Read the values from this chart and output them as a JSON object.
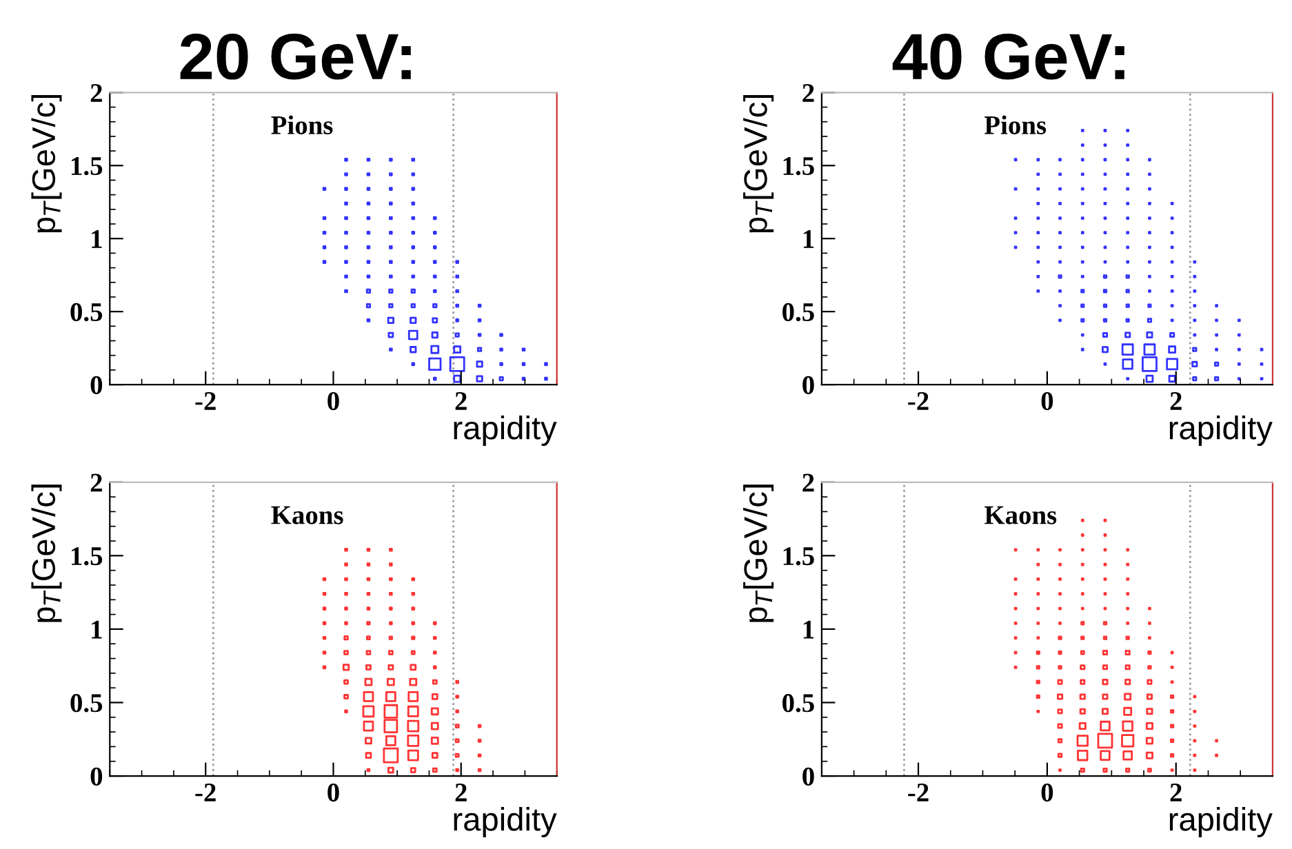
{
  "chart_data": [
    {
      "type": "bubble",
      "title": "20 GeV:",
      "xlabel": "rapidity",
      "ylabel": "p$_{T}$[GeV/c]",
      "annotations": [
        "Pions"
      ],
      "xlim": [
        -3.5,
        3.5
      ],
      "xticks": [
        -2,
        0,
        2
      ],
      "ylim": [
        0,
        2
      ],
      "yticks": [
        0,
        0.5,
        1,
        1.5,
        2
      ],
      "marker": "square",
      "grid": false,
      "ref_lines": [
        {
          "axis": "x",
          "value": -1.88,
          "color": "#999999",
          "line_style": "dotted"
        },
        {
          "axis": "x",
          "value": 1.88,
          "color": "#999999",
          "line_style": "dotted"
        }
      ],
      "series": [
        {
          "color": "#3333ff",
          "x": [
            0.2,
            0.55,
            0.9,
            1.25,
            0.2,
            0.55,
            0.9,
            1.25,
            -0.14,
            0.2,
            0.55,
            0.9,
            1.25,
            0.2,
            0.55,
            0.9,
            1.25,
            -0.14,
            0.2,
            0.55,
            0.9,
            1.25,
            1.59,
            -0.14,
            0.2,
            0.55,
            0.9,
            1.25,
            1.59,
            -0.14,
            0.2,
            0.55,
            0.9,
            1.25,
            1.59,
            -0.14,
            0.2,
            0.55,
            0.9,
            1.25,
            1.59,
            1.94,
            0.2,
            0.55,
            0.9,
            1.25,
            1.59,
            1.94,
            0.2,
            0.55,
            0.9,
            1.25,
            1.59,
            1.94,
            0.55,
            0.9,
            1.25,
            1.59,
            1.94,
            2.29,
            0.55,
            0.9,
            1.25,
            1.59,
            1.94,
            2.29,
            0.9,
            1.25,
            1.59,
            1.94,
            2.29,
            2.63,
            0.9,
            1.25,
            1.59,
            1.94,
            2.29,
            2.63,
            2.98,
            1.25,
            1.59,
            1.94,
            2.29,
            2.63,
            2.98,
            3.33,
            1.59,
            1.94,
            2.29,
            2.63,
            2.98,
            3.33
          ],
          "values": [
            1.54,
            1.54,
            1.54,
            1.54,
            1.44,
            1.44,
            1.44,
            1.44,
            1.34,
            1.34,
            1.34,
            1.34,
            1.34,
            1.24,
            1.24,
            1.24,
            1.24,
            1.14,
            1.14,
            1.14,
            1.14,
            1.14,
            1.14,
            1.04,
            1.04,
            1.04,
            1.04,
            1.04,
            1.04,
            0.94,
            0.94,
            0.94,
            0.94,
            0.94,
            0.94,
            0.84,
            0.84,
            0.84,
            0.84,
            0.84,
            0.84,
            0.84,
            0.74,
            0.74,
            0.74,
            0.74,
            0.74,
            0.74,
            0.64,
            0.64,
            0.64,
            0.64,
            0.64,
            0.64,
            0.54,
            0.54,
            0.54,
            0.54,
            0.54,
            0.54,
            0.44,
            0.44,
            0.44,
            0.44,
            0.44,
            0.44,
            0.34,
            0.34,
            0.34,
            0.34,
            0.34,
            0.34,
            0.24,
            0.24,
            0.24,
            0.24,
            0.24,
            0.24,
            0.24,
            0.14,
            0.14,
            0.14,
            0.14,
            0.14,
            0.14,
            0.14,
            0.04,
            0.04,
            0.04,
            0.04,
            0.04,
            0.04
          ],
          "sizes": [
            0.02,
            0.02,
            0.02,
            0.02,
            0.02,
            0.02,
            0.02,
            0.02,
            0.02,
            0.02,
            0.02,
            0.02,
            0.02,
            0.02,
            0.02,
            0.02,
            0.02,
            0.02,
            0.02,
            0.02,
            0.02,
            0.02,
            0.02,
            0.02,
            0.02,
            0.02,
            0.02,
            0.02,
            0.02,
            0.02,
            0.02,
            0.02,
            0.02,
            0.02,
            0.02,
            0.02,
            0.02,
            0.02,
            0.02,
            0.02,
            0.02,
            0.02,
            0.02,
            0.02,
            0.02,
            0.02,
            0.02,
            0.02,
            0.02,
            0.05,
            0.05,
            0.05,
            0.02,
            0.02,
            0.05,
            0.05,
            0.05,
            0.05,
            0.02,
            0.02,
            0.02,
            0.14,
            0.14,
            0.09,
            0.02,
            0.02,
            0.09,
            0.36,
            0.14,
            0.05,
            0.02,
            0.02,
            0.02,
            0.14,
            0.25,
            0.2,
            0.05,
            0.02,
            0.02,
            0.02,
            0.68,
            1,
            0.14,
            0.02,
            0.02,
            0.02,
            0.02,
            0.2,
            0.14,
            0.05,
            0.02,
            0.02
          ]
        }
      ]
    },
    {
      "type": "bubble",
      "title": "40 GeV:",
      "xlabel": "rapidity",
      "ylabel": "p$_{T}$[GeV/c]",
      "annotations": [
        "Pions"
      ],
      "xlim": [
        -3.5,
        3.5
      ],
      "xticks": [
        -2,
        0,
        2
      ],
      "ylim": [
        0,
        2
      ],
      "yticks": [
        0,
        0.5,
        1,
        1.5,
        2
      ],
      "marker": "square",
      "grid": false,
      "ref_lines": [
        {
          "axis": "x",
          "value": -2.22,
          "color": "#999999",
          "line_style": "dotted"
        },
        {
          "axis": "x",
          "value": 2.22,
          "color": "#999999",
          "line_style": "dotted"
        }
      ],
      "series": [
        {
          "color": "#3333ff",
          "x": [
            0.55,
            0.9,
            1.25,
            0.55,
            0.9,
            1.25,
            -0.49,
            -0.14,
            0.2,
            0.55,
            0.9,
            1.25,
            1.59,
            -0.14,
            0.2,
            0.55,
            0.9,
            1.25,
            1.59,
            -0.49,
            -0.14,
            0.2,
            0.55,
            0.9,
            1.25,
            1.59,
            -0.14,
            0.2,
            0.55,
            0.9,
            1.25,
            1.59,
            1.94,
            -0.49,
            -0.14,
            0.2,
            0.55,
            0.9,
            1.25,
            1.59,
            1.94,
            -0.49,
            -0.14,
            0.2,
            0.55,
            0.9,
            1.25,
            1.59,
            1.94,
            -0.49,
            -0.14,
            0.2,
            0.55,
            0.9,
            1.25,
            1.59,
            1.94,
            -0.14,
            0.2,
            0.55,
            0.9,
            1.25,
            1.59,
            1.94,
            2.29,
            -0.14,
            0.2,
            0.55,
            0.9,
            1.25,
            1.59,
            1.94,
            2.29,
            -0.14,
            0.2,
            0.55,
            0.9,
            1.25,
            1.59,
            1.94,
            2.29,
            0.2,
            0.55,
            0.9,
            1.25,
            1.59,
            1.94,
            2.29,
            2.63,
            0.2,
            0.55,
            0.9,
            1.25,
            1.59,
            1.94,
            2.29,
            2.63,
            2.98,
            0.55,
            0.9,
            1.25,
            1.59,
            1.94,
            2.29,
            2.63,
            2.98,
            0.55,
            0.9,
            1.25,
            1.59,
            1.94,
            2.29,
            2.63,
            2.98,
            3.33,
            0.9,
            1.25,
            1.59,
            1.94,
            2.29,
            2.63,
            2.98,
            3.33,
            1.25,
            1.59,
            1.94,
            2.29,
            2.63,
            2.98,
            3.33
          ],
          "values": [
            1.74,
            1.74,
            1.74,
            1.64,
            1.64,
            1.64,
            1.54,
            1.54,
            1.54,
            1.54,
            1.54,
            1.54,
            1.54,
            1.44,
            1.44,
            1.44,
            1.44,
            1.44,
            1.44,
            1.34,
            1.34,
            1.34,
            1.34,
            1.34,
            1.34,
            1.34,
            1.24,
            1.24,
            1.24,
            1.24,
            1.24,
            1.24,
            1.24,
            1.14,
            1.14,
            1.14,
            1.14,
            1.14,
            1.14,
            1.14,
            1.14,
            1.04,
            1.04,
            1.04,
            1.04,
            1.04,
            1.04,
            1.04,
            1.04,
            0.94,
            0.94,
            0.94,
            0.94,
            0.94,
            0.94,
            0.94,
            0.94,
            0.84,
            0.84,
            0.84,
            0.84,
            0.84,
            0.84,
            0.84,
            0.84,
            0.74,
            0.74,
            0.74,
            0.74,
            0.74,
            0.74,
            0.74,
            0.74,
            0.64,
            0.64,
            0.64,
            0.64,
            0.64,
            0.64,
            0.64,
            0.64,
            0.54,
            0.54,
            0.54,
            0.54,
            0.54,
            0.54,
            0.54,
            0.54,
            0.44,
            0.44,
            0.44,
            0.44,
            0.44,
            0.44,
            0.44,
            0.44,
            0.44,
            0.34,
            0.34,
            0.34,
            0.34,
            0.34,
            0.34,
            0.34,
            0.34,
            0.24,
            0.24,
            0.24,
            0.24,
            0.24,
            0.24,
            0.24,
            0.24,
            0.24,
            0.14,
            0.14,
            0.14,
            0.14,
            0.14,
            0.14,
            0.14,
            0.14,
            0.04,
            0.04,
            0.04,
            0.04,
            0.04,
            0.04,
            0.04
          ],
          "sizes": [
            0.01,
            0.01,
            0.01,
            0.01,
            0.01,
            0.01,
            0.01,
            0.01,
            0.01,
            0.01,
            0.01,
            0.01,
            0.01,
            0.01,
            0.01,
            0.01,
            0.01,
            0.01,
            0.01,
            0.01,
            0.01,
            0.01,
            0.01,
            0.01,
            0.01,
            0.01,
            0.01,
            0.01,
            0.01,
            0.01,
            0.01,
            0.01,
            0.01,
            0.01,
            0.01,
            0.01,
            0.01,
            0.01,
            0.01,
            0.01,
            0.01,
            0.01,
            0.01,
            0.01,
            0.01,
            0.01,
            0.01,
            0.01,
            0.01,
            0.01,
            0.01,
            0.01,
            0.01,
            0.01,
            0.01,
            0.01,
            0.01,
            0.01,
            0.01,
            0.01,
            0.01,
            0.01,
            0.01,
            0.01,
            0.01,
            0.01,
            0.03,
            0.01,
            0.03,
            0.03,
            0.01,
            0.01,
            0.01,
            0.01,
            0.01,
            0.03,
            0.03,
            0.03,
            0.01,
            0.01,
            0.01,
            0.01,
            0.03,
            0.03,
            0.03,
            0.03,
            0.01,
            0.01,
            0.01,
            0.01,
            0.03,
            0.03,
            0.03,
            0.05,
            0.01,
            0.01,
            0.01,
            0.01,
            0.01,
            0.07,
            0.1,
            0.13,
            0.07,
            0.01,
            0.01,
            0.01,
            0.01,
            0.13,
            0.56,
            0.56,
            0.2,
            0.05,
            0.01,
            0.01,
            0.01,
            0.01,
            0.46,
            1,
            0.56,
            0.1,
            0.05,
            0.01,
            0.01,
            0.01,
            0.2,
            0.17,
            0.05,
            0.05,
            0.01,
            0.01
          ]
        }
      ]
    },
    {
      "type": "bubble",
      "xlabel": "rapidity",
      "ylabel": "p$_{T}$[GeV/c]",
      "annotations": [
        "Kaons"
      ],
      "xlim": [
        -3.5,
        3.5
      ],
      "xticks": [
        -2,
        0,
        2
      ],
      "ylim": [
        0,
        2
      ],
      "yticks": [
        0,
        0.5,
        1,
        1.5,
        2
      ],
      "marker": "square",
      "grid": false,
      "ref_lines": [
        {
          "axis": "x",
          "value": -1.88,
          "color": "#999999",
          "line_style": "dotted"
        },
        {
          "axis": "x",
          "value": 1.88,
          "color": "#999999",
          "line_style": "dotted"
        }
      ],
      "series": [
        {
          "color": "#ff3333",
          "x": [
            0.2,
            0.55,
            0.9,
            0.2,
            0.55,
            0.9,
            -0.14,
            0.2,
            0.55,
            0.9,
            1.25,
            -0.14,
            0.2,
            0.55,
            0.9,
            1.25,
            -0.14,
            0.2,
            0.55,
            0.9,
            1.25,
            -0.14,
            0.2,
            0.55,
            0.9,
            1.25,
            1.59,
            -0.14,
            0.2,
            0.55,
            0.9,
            1.25,
            1.59,
            -0.14,
            0.2,
            0.55,
            0.9,
            1.25,
            1.59,
            -0.14,
            0.2,
            0.55,
            0.9,
            1.25,
            1.59,
            0.2,
            0.55,
            0.9,
            1.25,
            1.59,
            1.94,
            0.2,
            0.55,
            0.9,
            1.25,
            1.59,
            1.94,
            0.2,
            0.55,
            0.9,
            1.25,
            1.59,
            1.94,
            0.55,
            0.9,
            1.25,
            1.59,
            1.94,
            2.29,
            0.55,
            0.9,
            1.25,
            1.59,
            1.94,
            2.29,
            0.55,
            0.9,
            1.25,
            1.59,
            1.94,
            2.29,
            0.55,
            0.9,
            1.25,
            1.59,
            1.94,
            2.29
          ],
          "values": [
            1.54,
            1.54,
            1.54,
            1.44,
            1.44,
            1.44,
            1.34,
            1.34,
            1.34,
            1.34,
            1.34,
            1.24,
            1.24,
            1.24,
            1.24,
            1.24,
            1.14,
            1.14,
            1.14,
            1.14,
            1.14,
            1.04,
            1.04,
            1.04,
            1.04,
            1.04,
            1.04,
            0.94,
            0.94,
            0.94,
            0.94,
            0.94,
            0.94,
            0.84,
            0.84,
            0.84,
            0.84,
            0.84,
            0.84,
            0.74,
            0.74,
            0.74,
            0.74,
            0.74,
            0.74,
            0.64,
            0.64,
            0.64,
            0.64,
            0.64,
            0.64,
            0.54,
            0.54,
            0.54,
            0.54,
            0.54,
            0.54,
            0.44,
            0.44,
            0.44,
            0.44,
            0.44,
            0.44,
            0.34,
            0.34,
            0.34,
            0.34,
            0.34,
            0.34,
            0.24,
            0.24,
            0.24,
            0.24,
            0.24,
            0.24,
            0.14,
            0.14,
            0.14,
            0.14,
            0.14,
            0.14,
            0.04,
            0.04,
            0.04,
            0.04,
            0.04,
            0.04
          ],
          "sizes": [
            0.02,
            0.02,
            0.02,
            0.02,
            0.02,
            0.02,
            0.02,
            0.02,
            0.02,
            0.02,
            0.02,
            0.02,
            0.02,
            0.02,
            0.02,
            0.02,
            0.02,
            0.02,
            0.02,
            0.02,
            0.02,
            0.02,
            0.02,
            0.03,
            0.02,
            0.02,
            0.02,
            0.02,
            0.05,
            0.04,
            0.03,
            0.03,
            0.02,
            0.02,
            0.06,
            0.06,
            0.06,
            0.04,
            0.02,
            0.02,
            0.14,
            0.09,
            0.09,
            0.12,
            0.02,
            0.06,
            0.2,
            0.2,
            0.2,
            0.06,
            0.02,
            0.06,
            0.42,
            0.42,
            0.42,
            0.12,
            0.02,
            0.02,
            0.56,
            0.81,
            0.49,
            0.2,
            0.02,
            0.42,
            0.81,
            0.56,
            0.2,
            0.04,
            0.02,
            0.16,
            0.42,
            0.56,
            0.2,
            0.04,
            0.02,
            0.12,
            1,
            0.49,
            0.12,
            0.04,
            0.02,
            0.02,
            0.12,
            0.09,
            0.06,
            0.02,
            0.02
          ]
        }
      ]
    },
    {
      "type": "bubble",
      "xlabel": "rapidity",
      "ylabel": "p$_{T}$[GeV/c]",
      "annotations": [
        "Kaons"
      ],
      "xlim": [
        -3.5,
        3.5
      ],
      "xticks": [
        -2,
        0,
        2
      ],
      "ylim": [
        0,
        2
      ],
      "yticks": [
        0,
        0.5,
        1,
        1.5,
        2
      ],
      "marker": "square",
      "grid": false,
      "ref_lines": [
        {
          "axis": "x",
          "value": -2.22,
          "color": "#999999",
          "line_style": "dotted"
        },
        {
          "axis": "x",
          "value": 2.22,
          "color": "#999999",
          "line_style": "dotted"
        }
      ],
      "series": [
        {
          "color": "#ff3333",
          "x": [
            0.55,
            0.9,
            0.55,
            0.9,
            -0.49,
            -0.14,
            0.2,
            0.55,
            0.9,
            1.25,
            -0.14,
            0.2,
            0.55,
            0.9,
            1.25,
            -0.49,
            -0.14,
            0.2,
            0.55,
            0.9,
            1.25,
            -0.49,
            -0.14,
            0.2,
            0.55,
            0.9,
            1.25,
            -0.49,
            -0.14,
            0.2,
            0.55,
            0.9,
            1.25,
            1.59,
            -0.49,
            -0.14,
            0.2,
            0.55,
            0.9,
            1.25,
            1.59,
            -0.49,
            -0.14,
            0.2,
            0.55,
            0.9,
            1.25,
            1.59,
            -0.49,
            -0.14,
            0.2,
            0.55,
            0.9,
            1.25,
            1.59,
            1.94,
            -0.49,
            -0.14,
            0.2,
            0.55,
            0.9,
            1.25,
            1.59,
            1.94,
            -0.14,
            0.2,
            0.55,
            0.9,
            1.25,
            1.59,
            1.94,
            -0.14,
            0.2,
            0.55,
            0.9,
            1.25,
            1.59,
            1.94,
            2.29,
            -0.14,
            0.2,
            0.55,
            0.9,
            1.25,
            1.59,
            1.94,
            2.29,
            0.2,
            0.55,
            0.9,
            1.25,
            1.59,
            1.94,
            2.29,
            0.2,
            0.55,
            0.9,
            1.25,
            1.59,
            1.94,
            2.29,
            2.63,
            0.2,
            0.55,
            0.9,
            1.25,
            1.59,
            1.94,
            2.29,
            2.63,
            0.2,
            0.55,
            0.9,
            1.25,
            1.59,
            1.94,
            2.29
          ],
          "values": [
            1.74,
            1.74,
            1.64,
            1.64,
            1.54,
            1.54,
            1.54,
            1.54,
            1.54,
            1.54,
            1.44,
            1.44,
            1.44,
            1.44,
            1.44,
            1.34,
            1.34,
            1.34,
            1.34,
            1.34,
            1.34,
            1.24,
            1.24,
            1.24,
            1.24,
            1.24,
            1.24,
            1.14,
            1.14,
            1.14,
            1.14,
            1.14,
            1.14,
            1.14,
            1.04,
            1.04,
            1.04,
            1.04,
            1.04,
            1.04,
            1.04,
            0.94,
            0.94,
            0.94,
            0.94,
            0.94,
            0.94,
            0.94,
            0.84,
            0.84,
            0.84,
            0.84,
            0.84,
            0.84,
            0.84,
            0.84,
            0.74,
            0.74,
            0.74,
            0.74,
            0.74,
            0.74,
            0.74,
            0.74,
            0.64,
            0.64,
            0.64,
            0.64,
            0.64,
            0.64,
            0.64,
            0.54,
            0.54,
            0.54,
            0.54,
            0.54,
            0.54,
            0.54,
            0.54,
            0.44,
            0.44,
            0.44,
            0.44,
            0.44,
            0.44,
            0.44,
            0.44,
            0.34,
            0.34,
            0.34,
            0.34,
            0.34,
            0.34,
            0.34,
            0.24,
            0.24,
            0.24,
            0.24,
            0.24,
            0.24,
            0.24,
            0.24,
            0.14,
            0.14,
            0.14,
            0.14,
            0.14,
            0.14,
            0.14,
            0.14,
            0.04,
            0.04,
            0.04,
            0.04,
            0.04,
            0.04,
            0.04
          ],
          "sizes": [
            0.01,
            0.01,
            0.01,
            0.01,
            0.01,
            0.01,
            0.01,
            0.01,
            0.01,
            0.01,
            0.01,
            0.01,
            0.01,
            0.01,
            0.01,
            0.01,
            0.01,
            0.01,
            0.01,
            0.01,
            0.01,
            0.01,
            0.01,
            0.01,
            0.01,
            0.01,
            0.01,
            0.01,
            0.01,
            0.01,
            0.01,
            0.01,
            0.01,
            0.01,
            0.01,
            0.01,
            0.01,
            0.03,
            0.03,
            0.01,
            0.01,
            0.01,
            0.01,
            0.03,
            0.03,
            0.03,
            0.03,
            0.01,
            0.01,
            0.03,
            0.03,
            0.04,
            0.07,
            0.07,
            0.03,
            0.01,
            0.01,
            0.03,
            0.03,
            0.07,
            0.07,
            0.07,
            0.03,
            0.01,
            0.03,
            0.07,
            0.07,
            0.1,
            0.1,
            0.07,
            0.01,
            0.03,
            0.1,
            0.1,
            0.1,
            0.17,
            0.1,
            0.03,
            0.01,
            0.01,
            0.07,
            0.1,
            0.13,
            0.25,
            0.13,
            0.03,
            0.01,
            0.07,
            0.17,
            0.4,
            0.46,
            0.17,
            0.03,
            0.01,
            0.05,
            0.53,
            1,
            0.67,
            0.17,
            0.03,
            0.01,
            0.01,
            0.05,
            0.46,
            0.4,
            0.35,
            0.17,
            0.03,
            0.01,
            0.01,
            0.01,
            0.05,
            0.05,
            0.05,
            0.04,
            0.01,
            0.01
          ]
        }
      ]
    }
  ]
}
